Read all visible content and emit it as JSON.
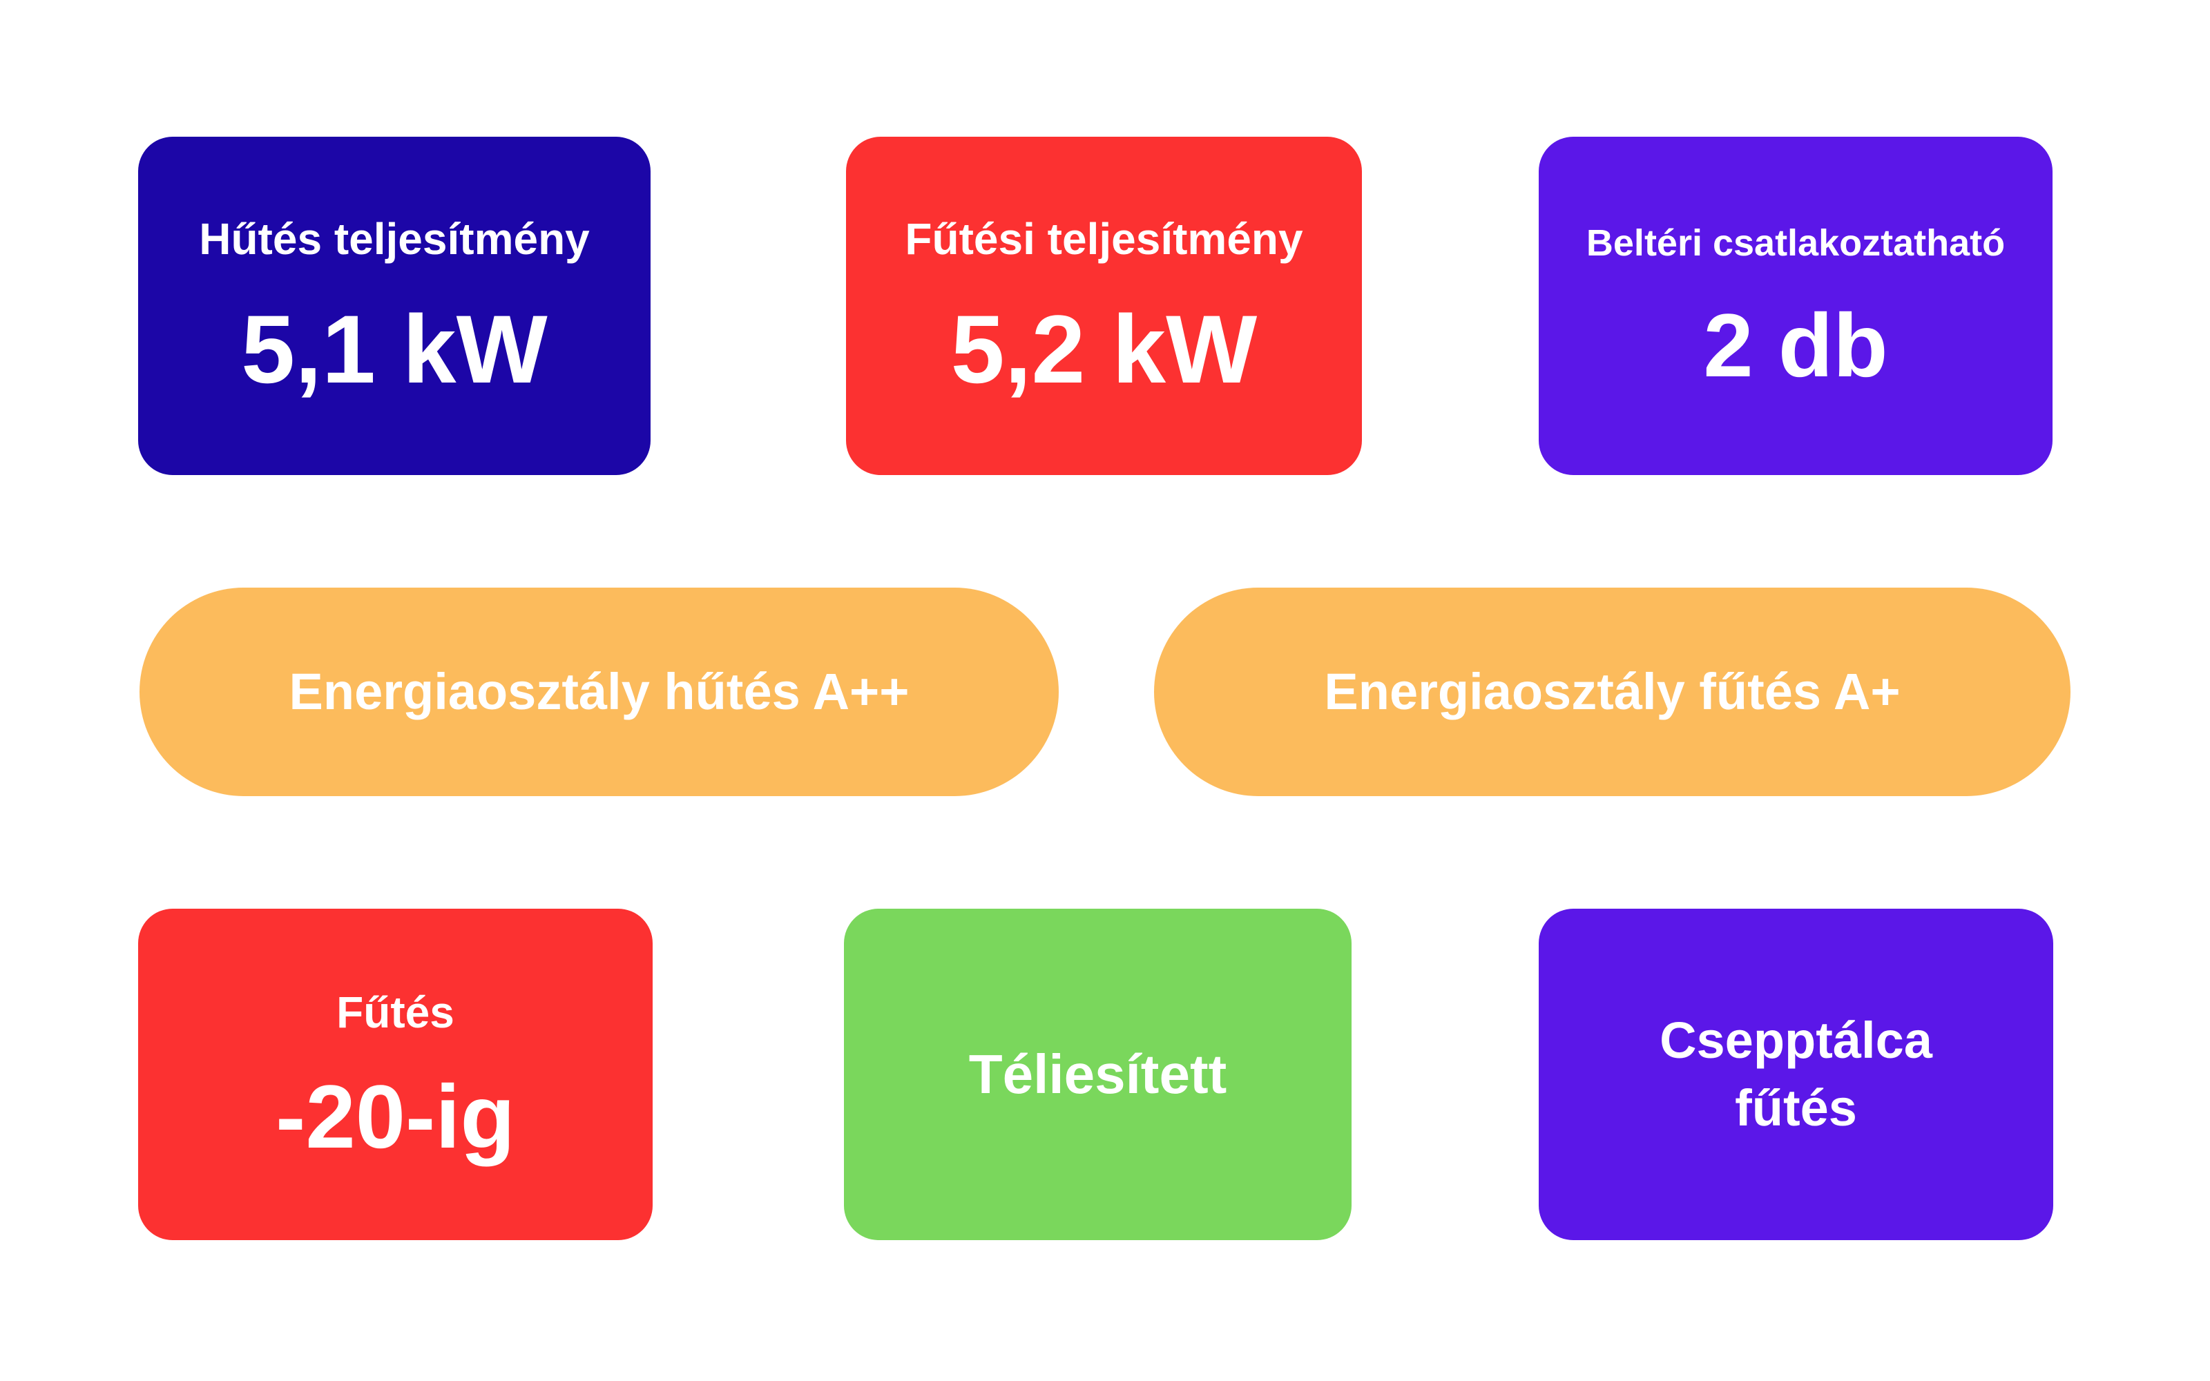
{
  "page": {
    "background": "#ffffff",
    "text_color": "#ffffff"
  },
  "colors": {
    "dark_blue": "#1C06A7",
    "red": "#FC3131",
    "violet": "#5B17E8",
    "orange": "#FCBB5C",
    "green": "#7AD75C"
  },
  "rows": {
    "top": [
      {
        "label": "Hűtés teljesítmény",
        "value": "5,1 kW",
        "color": "#1C06A7"
      },
      {
        "label": "Fűtési teljesítmény",
        "value": "5,2 kW",
        "color": "#FC3131"
      },
      {
        "label": "Beltéri csatlakoztatható",
        "value": "2 db",
        "color": "#5B17E8"
      }
    ],
    "middle": [
      {
        "label": "Energiaosztály hűtés A++",
        "color": "#FCBB5C"
      },
      {
        "label": "Energiaosztály fűtés A+",
        "color": "#FCBB5C"
      }
    ],
    "bottom": [
      {
        "label": "Fűtés",
        "value": "-20-ig",
        "color": "#FC3131"
      },
      {
        "label": "Téliesített",
        "color": "#7AD75C"
      },
      {
        "label": "Csepptálca fűtés",
        "color": "#5B17E8"
      }
    ]
  }
}
